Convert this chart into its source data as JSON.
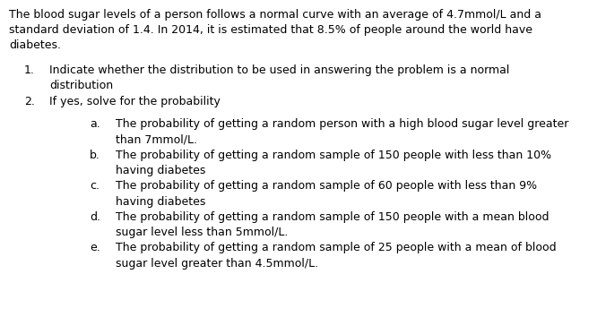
{
  "bg_color": "#ffffff",
  "text_color": "#000000",
  "intro_line1": "The blood sugar levels of a person follows a normal curve with an average of 4.7mmol/L and a",
  "intro_line2": "standard deviation of 1.4. In 2014, it is estimated that 8.5% of people around the world have",
  "intro_line3": "diabetes.",
  "item1_label": "1.",
  "item1_text_line1": "Indicate whether the distribution to be used in answering the problem is a normal",
  "item1_text_line2": "distribution",
  "item2_label": "2.",
  "item2_text": "If yes, solve for the probability",
  "sub_items": [
    {
      "label": "a.",
      "line1": "The probability of getting a random person with a high blood sugar level greater",
      "line2": "than 7mmol/L."
    },
    {
      "label": "b.",
      "line1": "The probability of getting a random sample of 150 people with less than 10%",
      "line2": "having diabetes"
    },
    {
      "label": "c.",
      "line1": "The probability of getting a random sample of 60 people with less than 9%",
      "line2": "having diabetes"
    },
    {
      "label": "d.",
      "line1": "The probability of getting a random sample of 150 people with a mean blood",
      "line2": "sugar level less than 5mmol/L."
    },
    {
      "label": "e.",
      "line1": "The probability of getting a random sample of 25 people with a mean of blood",
      "line2": "sugar level greater than 4.5mmol/L."
    }
  ],
  "font_size": 9.0,
  "fig_width": 6.66,
  "fig_height": 3.73,
  "dpi": 100
}
